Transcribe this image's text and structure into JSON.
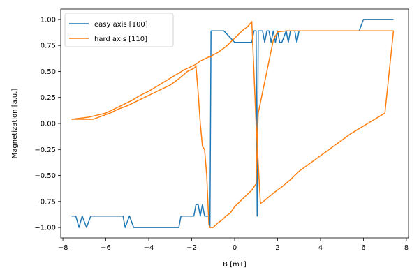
{
  "chart_data": {
    "type": "line",
    "title": "",
    "xlabel": "B [mT]",
    "ylabel": "Magnetization [a.u.]",
    "xlim": [
      -8.1,
      8.1
    ],
    "ylim": [
      -1.1,
      1.1
    ],
    "xticks": [
      -8,
      -6,
      -4,
      -2,
      0,
      2,
      4,
      6,
      8
    ],
    "xtick_labels": [
      "−8",
      "−6",
      "−4",
      "−2",
      "0",
      "2",
      "4",
      "6",
      "8"
    ],
    "yticks": [
      -1.0,
      -0.75,
      -0.5,
      -0.25,
      0.0,
      0.25,
      0.5,
      0.75,
      1.0
    ],
    "ytick_labels": [
      "−1.00",
      "−0.75",
      "−0.50",
      "−0.25",
      "0.00",
      "0.25",
      "0.50",
      "0.75",
      "1.00"
    ],
    "grid": false,
    "legend_position": "upper-left",
    "series": [
      {
        "name": "easy axis [100]",
        "color": "#1f77b4",
        "x": [
          -7.6,
          -7.4,
          -7.25,
          -7.1,
          -6.9,
          -6.7,
          -6.5,
          -6.2,
          -5.6,
          -5.2,
          -5.1,
          -4.9,
          -4.7,
          -4.3,
          -3.8,
          -3.2,
          -2.6,
          -2.5,
          -2.2,
          -1.9,
          -1.8,
          -1.7,
          -1.6,
          -1.5,
          -1.4,
          -1.3,
          -1.2,
          -1.15,
          -1.1,
          -0.5,
          0.0,
          0.05,
          0.8,
          0.9,
          1.0,
          1.05,
          1.1,
          1.2,
          1.3,
          1.4,
          1.5,
          1.6,
          1.7,
          1.8,
          1.9,
          2.0,
          2.1,
          2.2,
          2.4,
          2.5,
          2.6,
          2.7,
          2.8,
          2.9,
          3.0,
          3.2,
          3.4,
          3.6,
          3.8,
          4.0,
          4.2,
          4.4,
          4.6,
          4.8,
          5.0,
          5.2,
          5.4,
          5.6,
          5.8,
          6.0,
          6.4,
          6.6,
          6.8,
          7.0,
          7.4
        ],
        "y": [
          -0.89,
          -0.89,
          -1.0,
          -0.89,
          -1.0,
          -0.89,
          -0.89,
          -0.89,
          -0.89,
          -0.89,
          -1.0,
          -0.89,
          -1.0,
          -1.0,
          -1.0,
          -1.0,
          -1.0,
          -0.89,
          -0.89,
          -0.89,
          -0.78,
          -0.78,
          -0.89,
          -0.78,
          -0.89,
          -0.89,
          -0.89,
          -1.0,
          0.89,
          0.89,
          0.78,
          0.78,
          0.78,
          0.89,
          0.89,
          -0.89,
          0.89,
          0.89,
          0.89,
          0.78,
          0.89,
          0.89,
          0.78,
          0.89,
          0.78,
          0.89,
          0.78,
          0.78,
          0.89,
          0.78,
          0.89,
          0.89,
          0.89,
          0.78,
          0.89,
          0.89,
          0.89,
          0.89,
          0.89,
          0.89,
          0.89,
          0.89,
          0.89,
          0.89,
          0.89,
          0.89,
          0.89,
          0.89,
          0.89,
          1.0,
          1.0,
          1.0,
          1.0,
          1.0,
          1.0
        ]
      },
      {
        "name": "hard axis [110]",
        "color": "#ff7f0e",
        "x": [
          -7.6,
          -7.0,
          -6.6,
          -6.2,
          -5.8,
          -5.4,
          -5.0,
          -4.6,
          -4.2,
          -3.8,
          -3.4,
          -3.0,
          -2.6,
          -2.2,
          -2.0,
          -1.9,
          -1.8,
          -1.7,
          -1.6,
          -1.5,
          -1.4,
          -1.3,
          -1.2,
          -1.15,
          -1.1,
          -1.0,
          -0.8,
          -0.6,
          -0.4,
          -0.2,
          0.0,
          0.2,
          0.4,
          0.6,
          0.8,
          0.9,
          1.0,
          1.05,
          1.1,
          1.2,
          1.3,
          1.4,
          1.5,
          1.6,
          1.7,
          1.8,
          2.0,
          2.4,
          2.8,
          3.2,
          3.6,
          4.0,
          4.4,
          4.8,
          5.2,
          5.6,
          6.0,
          6.4,
          6.8,
          7.0,
          7.2,
          7.4,
          7.0,
          6.6,
          6.2,
          5.8,
          5.4,
          5.0,
          4.6,
          4.2,
          3.8,
          3.4,
          3.0,
          2.6,
          2.2,
          1.8,
          1.4,
          1.2,
          1.0,
          0.8,
          0.6,
          0.4,
          0.2,
          0.0,
          -0.2,
          -0.4,
          -0.6,
          -0.8,
          -1.0,
          -1.1,
          -1.2,
          -1.4,
          -1.6,
          -1.8,
          -2.0,
          -2.4,
          -2.8,
          -3.2,
          -3.6,
          -4.0,
          -4.4,
          -4.8,
          -5.2,
          -5.6,
          -6.0,
          -6.4,
          -6.8,
          -7.2,
          -7.6
        ],
        "y": [
          0.04,
          0.04,
          0.04,
          0.07,
          0.1,
          0.14,
          0.17,
          0.21,
          0.25,
          0.29,
          0.33,
          0.37,
          0.43,
          0.5,
          0.52,
          0.53,
          0.55,
          0.3,
          0.0,
          -0.22,
          -0.25,
          -0.5,
          -0.97,
          -1.0,
          -1.0,
          -1.0,
          -0.96,
          -0.93,
          -0.89,
          -0.86,
          -0.8,
          -0.76,
          -0.72,
          -0.68,
          -0.64,
          -0.61,
          -0.58,
          -0.2,
          0.1,
          0.2,
          0.3,
          0.4,
          0.5,
          0.6,
          0.7,
          0.8,
          0.88,
          0.89,
          0.89,
          0.89,
          0.89,
          0.89,
          0.89,
          0.89,
          0.89,
          0.89,
          0.89,
          0.89,
          0.89,
          0.89,
          0.89,
          0.89,
          0.1,
          0.05,
          0.0,
          -0.05,
          -0.1,
          -0.16,
          -0.22,
          -0.28,
          -0.34,
          -0.4,
          -0.46,
          -0.54,
          -0.61,
          -0.67,
          -0.74,
          -0.77,
          0.0,
          0.98,
          0.93,
          0.9,
          0.86,
          0.82,
          0.78,
          0.74,
          0.71,
          0.68,
          0.66,
          0.64,
          0.64,
          0.62,
          0.6,
          0.57,
          0.55,
          0.51,
          0.46,
          0.41,
          0.36,
          0.31,
          0.27,
          0.22,
          0.18,
          0.14,
          0.1,
          0.08,
          0.06,
          0.05,
          0.04
        ]
      }
    ]
  }
}
